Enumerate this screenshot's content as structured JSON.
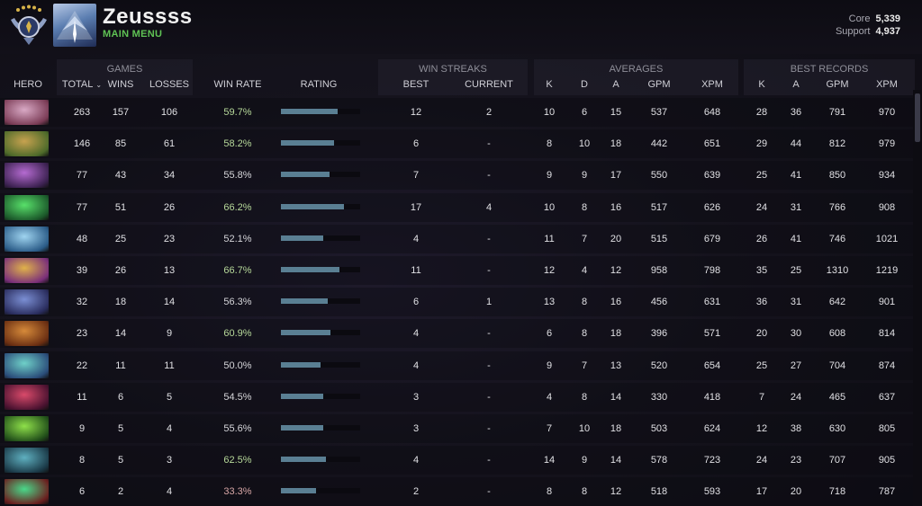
{
  "profile": {
    "name": "Zeussss",
    "subtitle": "MAIN MENU",
    "core_label": "Core",
    "core_value": "5,339",
    "support_label": "Support",
    "support_value": "4,937"
  },
  "groups": {
    "games": "GAMES",
    "win_streaks": "WIN STREAKS",
    "averages": "AVERAGES",
    "best_records": "BEST RECORDS"
  },
  "columns": {
    "hero": "HERO",
    "total": "TOTAL",
    "wins": "WINS",
    "losses": "LOSSES",
    "win_rate": "WIN RATE",
    "rating": "RATING",
    "best": "BEST",
    "current": "CURRENT",
    "k": "K",
    "d": "D",
    "a": "A",
    "gpm": "GPM",
    "xpm": "XPM",
    "best_k": "K",
    "best_a": "A",
    "best_gpm": "GPM",
    "best_xpm": "XPM"
  },
  "sort_icon": "chevron-down-icon",
  "colors": {
    "accent_green": "#5fc254",
    "bar": "#5a7f93",
    "winrate_good": "#b7d99a",
    "winrate_bad": "#d8a7a7"
  },
  "rows": [
    {
      "hero_icon": "hero-portrait-1",
      "total": "263",
      "wins": "157",
      "losses": "106",
      "win_rate": "59.7%",
      "rating": 0.72,
      "best": "12",
      "current": "2",
      "k": "10",
      "d": "6",
      "a": "15",
      "gpm": "537",
      "xpm": "648",
      "best_k": "28",
      "best_a": "36",
      "best_gpm": "791",
      "best_xpm": "970"
    },
    {
      "hero_icon": "hero-portrait-2",
      "total": "146",
      "wins": "85",
      "losses": "61",
      "win_rate": "58.2%",
      "rating": 0.67,
      "best": "6",
      "current": "-",
      "k": "8",
      "d": "10",
      "a": "18",
      "gpm": "442",
      "xpm": "651",
      "best_k": "29",
      "best_a": "44",
      "best_gpm": "812",
      "best_xpm": "979"
    },
    {
      "hero_icon": "hero-portrait-3",
      "total": "77",
      "wins": "43",
      "losses": "34",
      "win_rate": "55.8%",
      "rating": 0.61,
      "best": "7",
      "current": "-",
      "k": "9",
      "d": "9",
      "a": "17",
      "gpm": "550",
      "xpm": "639",
      "best_k": "25",
      "best_a": "41",
      "best_gpm": "850",
      "best_xpm": "934"
    },
    {
      "hero_icon": "hero-portrait-4",
      "total": "77",
      "wins": "51",
      "losses": "26",
      "win_rate": "66.2%",
      "rating": 0.8,
      "best": "17",
      "current": "4",
      "k": "10",
      "d": "8",
      "a": "16",
      "gpm": "517",
      "xpm": "626",
      "best_k": "24",
      "best_a": "31",
      "best_gpm": "766",
      "best_xpm": "908"
    },
    {
      "hero_icon": "hero-portrait-5",
      "total": "48",
      "wins": "25",
      "losses": "23",
      "win_rate": "52.1%",
      "rating": 0.53,
      "best": "4",
      "current": "-",
      "k": "11",
      "d": "7",
      "a": "20",
      "gpm": "515",
      "xpm": "679",
      "best_k": "26",
      "best_a": "41",
      "best_gpm": "746",
      "best_xpm": "1021"
    },
    {
      "hero_icon": "hero-portrait-6",
      "total": "39",
      "wins": "26",
      "losses": "13",
      "win_rate": "66.7%",
      "rating": 0.74,
      "best": "11",
      "current": "-",
      "k": "12",
      "d": "4",
      "a": "12",
      "gpm": "958",
      "xpm": "798",
      "best_k": "35",
      "best_a": "25",
      "best_gpm": "1310",
      "best_xpm": "1219"
    },
    {
      "hero_icon": "hero-portrait-7",
      "total": "32",
      "wins": "18",
      "losses": "14",
      "win_rate": "56.3%",
      "rating": 0.59,
      "best": "6",
      "current": "1",
      "k": "13",
      "d": "8",
      "a": "16",
      "gpm": "456",
      "xpm": "631",
      "best_k": "36",
      "best_a": "31",
      "best_gpm": "642",
      "best_xpm": "901"
    },
    {
      "hero_icon": "hero-portrait-8",
      "total": "23",
      "wins": "14",
      "losses": "9",
      "win_rate": "60.9%",
      "rating": 0.62,
      "best": "4",
      "current": "-",
      "k": "6",
      "d": "8",
      "a": "18",
      "gpm": "396",
      "xpm": "571",
      "best_k": "20",
      "best_a": "30",
      "best_gpm": "608",
      "best_xpm": "814"
    },
    {
      "hero_icon": "hero-portrait-9",
      "total": "22",
      "wins": "11",
      "losses": "11",
      "win_rate": "50.0%",
      "rating": 0.5,
      "best": "4",
      "current": "-",
      "k": "9",
      "d": "7",
      "a": "13",
      "gpm": "520",
      "xpm": "654",
      "best_k": "25",
      "best_a": "27",
      "best_gpm": "704",
      "best_xpm": "874"
    },
    {
      "hero_icon": "hero-portrait-10",
      "total": "11",
      "wins": "6",
      "losses": "5",
      "win_rate": "54.5%",
      "rating": 0.53,
      "best": "3",
      "current": "-",
      "k": "4",
      "d": "8",
      "a": "14",
      "gpm": "330",
      "xpm": "418",
      "best_k": "7",
      "best_a": "24",
      "best_gpm": "465",
      "best_xpm": "637"
    },
    {
      "hero_icon": "hero-portrait-11",
      "total": "9",
      "wins": "5",
      "losses": "4",
      "win_rate": "55.6%",
      "rating": 0.53,
      "best": "3",
      "current": "-",
      "k": "7",
      "d": "10",
      "a": "18",
      "gpm": "503",
      "xpm": "624",
      "best_k": "12",
      "best_a": "38",
      "best_gpm": "630",
      "best_xpm": "805"
    },
    {
      "hero_icon": "hero-portrait-12",
      "total": "8",
      "wins": "5",
      "losses": "3",
      "win_rate": "62.5%",
      "rating": 0.57,
      "best": "4",
      "current": "-",
      "k": "14",
      "d": "9",
      "a": "14",
      "gpm": "578",
      "xpm": "723",
      "best_k": "24",
      "best_a": "23",
      "best_gpm": "707",
      "best_xpm": "905"
    },
    {
      "hero_icon": "hero-portrait-13",
      "total": "6",
      "wins": "2",
      "losses": "4",
      "win_rate": "33.3%",
      "rating": 0.44,
      "best": "2",
      "current": "-",
      "k": "8",
      "d": "8",
      "a": "12",
      "gpm": "518",
      "xpm": "593",
      "best_k": "17",
      "best_a": "20",
      "best_gpm": "718",
      "best_xpm": "787"
    }
  ]
}
